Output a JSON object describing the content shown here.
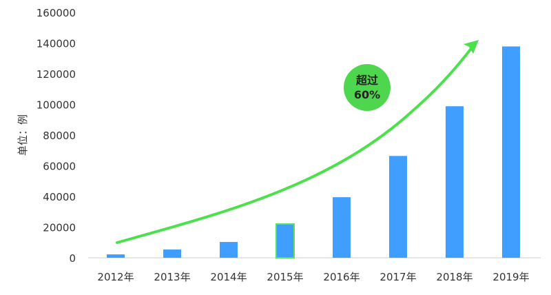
{
  "chart_data": {
    "type": "bar",
    "title": "",
    "xlabel": "",
    "ylabel": "单位：例",
    "categories": [
      "2012年",
      "2013年",
      "2014年",
      "2015年",
      "2016年",
      "2017年",
      "2018年",
      "2019年"
    ],
    "values": [
      2200,
      5400,
      10300,
      22000,
      39500,
      66400,
      98800,
      137800
    ],
    "ylim": [
      0,
      160000
    ],
    "yticks": [
      "0",
      "20000",
      "40000",
      "60000",
      "80000",
      "100000",
      "120000",
      "140000",
      "160000"
    ],
    "grid": false,
    "legend": "none",
    "bar_color": "#409eff",
    "highlight_outline_color": "#5ee05e",
    "highlight_category": "2015年",
    "annotation": {
      "line1": "超过",
      "line2": "60%",
      "badge_color": "#4fd64f",
      "arrow_color": "#4de04d"
    }
  }
}
